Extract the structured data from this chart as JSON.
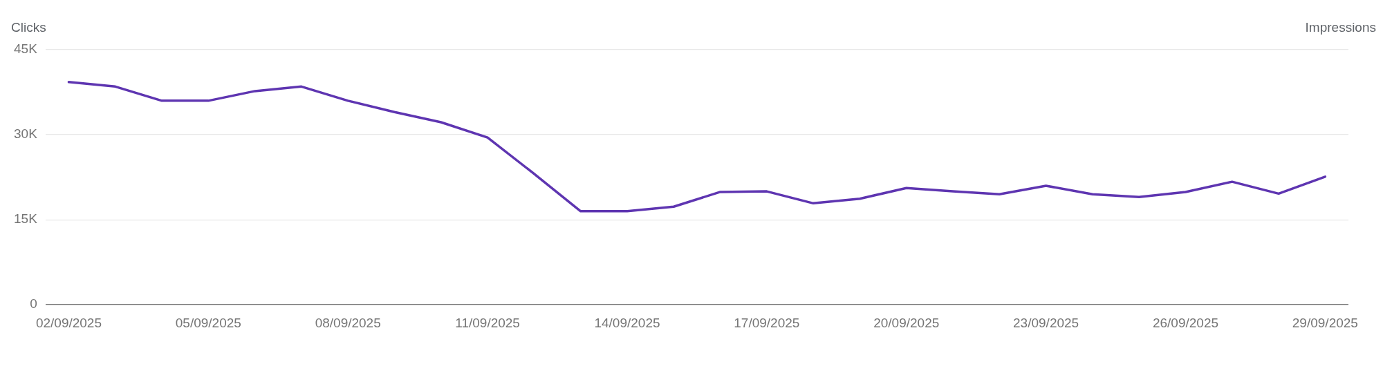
{
  "chart_data": {
    "type": "line",
    "ylabel": "Clicks",
    "y2label": "Impressions",
    "categories": [
      "02/09/2025",
      null,
      null,
      "05/09/2025",
      null,
      null,
      "08/09/2025",
      null,
      null,
      "11/09/2025",
      null,
      null,
      "14/09/2025",
      null,
      null,
      "17/09/2025",
      null,
      null,
      "20/09/2025",
      null,
      null,
      "23/09/2025",
      null,
      null,
      "26/09/2025",
      null,
      null,
      "29/09/2025"
    ],
    "series": [
      {
        "color": "#5e35b1",
        "values": [
          39.3,
          38.5,
          36.0,
          36.0,
          37.7,
          38.5,
          36.0,
          34.0,
          32.2,
          29.5,
          23.1,
          16.5,
          16.5,
          17.3,
          19.9,
          20.0,
          17.9,
          18.7,
          20.6,
          20.0,
          19.5,
          21.0,
          19.5,
          19.0,
          19.9,
          21.7,
          19.6,
          22.6
        ]
      }
    ],
    "ylim": [
      0,
      45
    ],
    "yticks": [
      {
        "value": 0,
        "label": "0"
      },
      {
        "value": 15,
        "label": "15K"
      },
      {
        "value": 30,
        "label": "30K"
      },
      {
        "value": 45,
        "label": "45K"
      }
    ],
    "grid": "y",
    "legend": false,
    "marker": "none",
    "line_style": "solid"
  }
}
